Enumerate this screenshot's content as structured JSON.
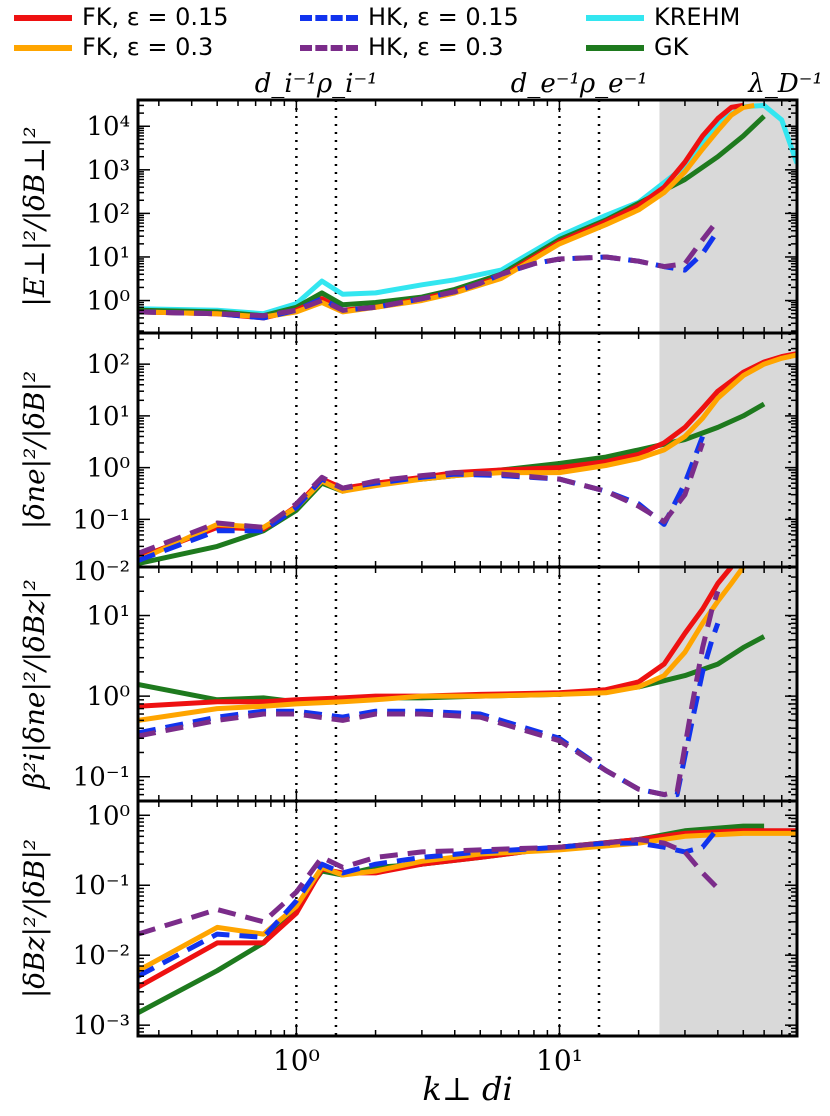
{
  "legend": [
    {
      "key": "fk015",
      "label": "FK, ε = 0.15",
      "color": "#ee1111",
      "dash": false
    },
    {
      "key": "fk03",
      "label": "FK, ε = 0.3",
      "color": "#ffa500",
      "dash": false
    },
    {
      "key": "hk015",
      "label": "HK, ε = 0.15",
      "color": "#1133ee",
      "dash": true
    },
    {
      "key": "hk03",
      "label": "HK, ε = 0.3",
      "color": "#7b2c8a",
      "dash": true
    },
    {
      "key": "krehm",
      "label": "KREHM",
      "color": "#33e6f0",
      "dash": false
    },
    {
      "key": "gk",
      "label": "GK",
      "color": "#1e7a1e",
      "dash": false
    }
  ],
  "scale_markers": [
    {
      "label": "d_i^{-1} ρ_i^{-1}",
      "lines": [
        1.0,
        1.414
      ]
    },
    {
      "label": "d_e^{-1} ρ_e^{-1}",
      "lines": [
        10.0,
        14.14
      ]
    },
    {
      "label": "λ_D^{-1}",
      "lines": [
        75.0
      ]
    }
  ],
  "marker_labels": {
    "ion": "d_i⁻¹ρ_i⁻¹",
    "electron": "d_e⁻¹ρ_e⁻¹",
    "debye": "λ_D⁻¹"
  },
  "xlabel": "k⊥ di",
  "chart_data": [
    {
      "type": "line",
      "id": "p1",
      "ylabel": "|E⊥|²/|δB⊥|²",
      "xlim": [
        0.25,
        80
      ],
      "ylim": [
        0.18,
        40000
      ],
      "yticks": [
        {
          "v": 1,
          "label": "10⁰"
        },
        {
          "v": 10,
          "label": "10¹"
        },
        {
          "v": 100,
          "label": "10²"
        },
        {
          "v": 1000,
          "label": "10³"
        },
        {
          "v": 10000,
          "label": "10⁴"
        }
      ],
      "shaded_from": 24,
      "series": [
        {
          "key": "krehm",
          "x": [
            0.25,
            0.5,
            0.75,
            1.0,
            1.25,
            1.5,
            2,
            3,
            4,
            6,
            10,
            15,
            20,
            30,
            40,
            50,
            60,
            70,
            80
          ],
          "y": [
            0.65,
            0.6,
            0.5,
            0.85,
            2.8,
            1.4,
            1.5,
            2.3,
            3.0,
            5,
            30,
            90,
            180,
            1200,
            12000,
            28000,
            30000,
            14000,
            1400
          ]
        },
        {
          "key": "gk",
          "x": [
            0.25,
            0.5,
            0.75,
            1.0,
            1.25,
            1.5,
            2,
            3,
            4,
            6,
            10,
            15,
            20,
            30,
            40,
            50,
            60
          ],
          "y": [
            0.6,
            0.55,
            0.45,
            0.7,
            1.5,
            0.8,
            0.9,
            1.2,
            1.8,
            4,
            25,
            70,
            170,
            600,
            2000,
            6000,
            17000
          ]
        },
        {
          "key": "fk015",
          "x": [
            0.25,
            0.5,
            0.75,
            1.0,
            1.25,
            1.5,
            2,
            3,
            4,
            6,
            10,
            15,
            20,
            25,
            30,
            35,
            40,
            45,
            50
          ],
          "y": [
            0.55,
            0.5,
            0.4,
            0.6,
            1.1,
            0.6,
            0.7,
            1.1,
            1.6,
            3.5,
            22,
            65,
            150,
            400,
            1500,
            6000,
            15000,
            27000,
            30000
          ]
        },
        {
          "key": "fk03",
          "x": [
            0.25,
            0.5,
            0.75,
            1.0,
            1.25,
            1.5,
            2,
            3,
            4,
            6,
            10,
            15,
            20,
            25,
            30,
            35,
            40,
            45,
            50,
            55
          ],
          "y": [
            0.55,
            0.5,
            0.42,
            0.55,
            0.9,
            0.55,
            0.7,
            1.0,
            1.5,
            3.2,
            20,
            55,
            120,
            300,
            900,
            3000,
            8000,
            18000,
            27000,
            30000
          ]
        },
        {
          "key": "hk015",
          "x": [
            0.25,
            0.5,
            0.75,
            1.0,
            1.25,
            1.5,
            2,
            3,
            4,
            5,
            6,
            8,
            10,
            15,
            20,
            25,
            30,
            35,
            40
          ],
          "y": [
            0.55,
            0.5,
            0.4,
            0.6,
            1.1,
            0.6,
            0.7,
            1.1,
            1.6,
            2.5,
            4,
            7,
            9,
            10,
            8,
            6,
            5,
            12,
            40
          ]
        },
        {
          "key": "hk03",
          "x": [
            0.25,
            0.5,
            0.75,
            1.0,
            1.25,
            1.5,
            2,
            3,
            4,
            5,
            6,
            8,
            10,
            15,
            20,
            25,
            30,
            35,
            40
          ],
          "y": [
            0.55,
            0.5,
            0.45,
            0.6,
            1.0,
            0.6,
            0.7,
            1.1,
            1.6,
            2.5,
            4,
            7,
            9,
            10,
            8,
            6,
            7,
            25,
            70
          ]
        }
      ]
    },
    {
      "type": "line",
      "id": "p2",
      "ylabel": "|δne|²/|δB|²",
      "xlim": [
        0.25,
        80
      ],
      "ylim": [
        0.012,
        400
      ],
      "yticks": [
        {
          "v": 0.01,
          "label": "10⁻²"
        },
        {
          "v": 0.1,
          "label": "10⁻¹"
        },
        {
          "v": 1,
          "label": "10⁰"
        },
        {
          "v": 10,
          "label": "10¹"
        },
        {
          "v": 100,
          "label": "10²"
        }
      ],
      "shaded_from": 24,
      "series": [
        {
          "key": "gk",
          "x": [
            0.25,
            0.5,
            0.75,
            1.0,
            1.25,
            1.5,
            2,
            3,
            4,
            6,
            10,
            15,
            20,
            30,
            40,
            50,
            60
          ],
          "y": [
            0.014,
            0.03,
            0.06,
            0.15,
            0.5,
            0.35,
            0.5,
            0.6,
            0.7,
            0.9,
            1.2,
            1.6,
            2.2,
            3.5,
            6,
            10,
            17
          ]
        },
        {
          "key": "fk015",
          "x": [
            0.25,
            0.5,
            0.75,
            1.0,
            1.25,
            1.5,
            2,
            3,
            4,
            6,
            10,
            15,
            20,
            25,
            30,
            35,
            40,
            50,
            60,
            70,
            80
          ],
          "y": [
            0.018,
            0.07,
            0.065,
            0.18,
            0.6,
            0.4,
            0.5,
            0.65,
            0.8,
            0.9,
            1.0,
            1.3,
            1.8,
            3,
            6,
            14,
            30,
            70,
            110,
            140,
            160
          ]
        },
        {
          "key": "fk03",
          "x": [
            0.25,
            0.5,
            0.75,
            1.0,
            1.25,
            1.5,
            2,
            3,
            4,
            6,
            10,
            15,
            20,
            25,
            30,
            35,
            40,
            50,
            60,
            70,
            80
          ],
          "y": [
            0.016,
            0.08,
            0.07,
            0.17,
            0.55,
            0.35,
            0.45,
            0.6,
            0.7,
            0.8,
            0.8,
            1.1,
            1.5,
            2.2,
            4,
            9,
            22,
            60,
            100,
            130,
            150
          ]
        },
        {
          "key": "hk015",
          "x": [
            0.25,
            0.5,
            0.75,
            1.0,
            1.25,
            1.5,
            2,
            3,
            4,
            6,
            10,
            15,
            20,
            25,
            30,
            35
          ],
          "y": [
            0.016,
            0.06,
            0.06,
            0.17,
            0.6,
            0.4,
            0.5,
            0.65,
            0.75,
            0.7,
            0.6,
            0.35,
            0.2,
            0.08,
            0.5,
            4
          ]
        },
        {
          "key": "hk03",
          "x": [
            0.25,
            0.5,
            0.75,
            1.0,
            1.25,
            1.5,
            2,
            3,
            4,
            6,
            10,
            15,
            20,
            25,
            30,
            35
          ],
          "y": [
            0.022,
            0.085,
            0.07,
            0.2,
            0.65,
            0.4,
            0.55,
            0.7,
            0.8,
            0.75,
            0.6,
            0.35,
            0.18,
            0.09,
            0.3,
            3
          ]
        }
      ]
    },
    {
      "type": "line",
      "id": "p3",
      "ylabel": "β²i|δne|²/|δBz|²",
      "xlim": [
        0.25,
        80
      ],
      "ylim": [
        0.05,
        40
      ],
      "yticks": [
        {
          "v": 0.1,
          "label": "10⁻¹"
        },
        {
          "v": 1,
          "label": "10⁰"
        },
        {
          "v": 10,
          "label": "10¹"
        }
      ],
      "shaded_from": 24,
      "series": [
        {
          "key": "gk",
          "x": [
            0.25,
            0.5,
            0.75,
            1.0,
            1.5,
            2,
            3,
            5,
            10,
            20,
            30,
            40,
            50,
            60
          ],
          "y": [
            1.4,
            0.9,
            0.95,
            0.85,
            0.9,
            0.95,
            0.95,
            1.0,
            1.05,
            1.3,
            1.8,
            2.5,
            4,
            5.5
          ]
        },
        {
          "key": "fk015",
          "x": [
            0.25,
            0.5,
            0.75,
            1.0,
            1.5,
            2,
            3,
            5,
            10,
            15,
            20,
            25,
            30,
            35,
            40,
            45
          ],
          "y": [
            0.75,
            0.85,
            0.85,
            0.9,
            0.95,
            1.0,
            1.0,
            1.05,
            1.1,
            1.2,
            1.5,
            2.5,
            6,
            12,
            25,
            40
          ]
        },
        {
          "key": "fk03",
          "x": [
            0.25,
            0.5,
            0.75,
            1.0,
            1.5,
            2,
            3,
            5,
            10,
            15,
            20,
            25,
            30,
            35,
            40,
            45,
            50
          ],
          "y": [
            0.5,
            0.7,
            0.75,
            0.8,
            0.85,
            0.9,
            1.0,
            1.0,
            1.05,
            1.1,
            1.3,
            1.8,
            3.5,
            8,
            15,
            25,
            40
          ]
        },
        {
          "key": "hk015",
          "x": [
            0.25,
            0.5,
            0.75,
            1.0,
            1.5,
            2,
            3,
            5,
            10,
            15,
            20,
            25,
            28,
            32,
            35,
            38,
            40
          ],
          "y": [
            0.35,
            0.55,
            0.65,
            0.65,
            0.55,
            0.65,
            0.65,
            0.6,
            0.3,
            0.12,
            0.07,
            0.06,
            0.06,
            0.5,
            2,
            5,
            8
          ]
        },
        {
          "key": "hk03",
          "x": [
            0.25,
            0.5,
            0.75,
            1.0,
            1.5,
            2,
            3,
            5,
            10,
            15,
            20,
            25,
            28,
            32,
            35,
            38,
            40
          ],
          "y": [
            0.32,
            0.5,
            0.6,
            0.6,
            0.5,
            0.6,
            0.6,
            0.55,
            0.28,
            0.12,
            0.07,
            0.06,
            0.065,
            0.8,
            4,
            12,
            20
          ]
        }
      ]
    },
    {
      "type": "line",
      "id": "p4",
      "ylabel": "|δBz|²/|δB|²",
      "xlim": [
        0.25,
        80
      ],
      "ylim": [
        0.0007,
        1.6
      ],
      "yticks": [
        {
          "v": 0.001,
          "label": "10⁻³"
        },
        {
          "v": 0.01,
          "label": "10⁻²"
        },
        {
          "v": 0.1,
          "label": "10⁻¹"
        },
        {
          "v": 1,
          "label": "10⁰"
        }
      ],
      "shaded_from": 24,
      "series": [
        {
          "key": "gk",
          "x": [
            0.25,
            0.5,
            0.75,
            1.0,
            1.25,
            1.5,
            2,
            3,
            5,
            10,
            20,
            30,
            50,
            60
          ],
          "y": [
            0.0015,
            0.006,
            0.015,
            0.05,
            0.16,
            0.14,
            0.18,
            0.2,
            0.25,
            0.35,
            0.45,
            0.6,
            0.7,
            0.7
          ]
        },
        {
          "key": "fk015",
          "x": [
            0.25,
            0.5,
            0.75,
            1.0,
            1.25,
            1.5,
            2,
            3,
            5,
            10,
            20,
            30,
            50,
            80
          ],
          "y": [
            0.0035,
            0.015,
            0.015,
            0.04,
            0.17,
            0.15,
            0.15,
            0.2,
            0.25,
            0.35,
            0.45,
            0.55,
            0.6,
            0.6
          ]
        },
        {
          "key": "fk03",
          "x": [
            0.25,
            0.5,
            0.75,
            1.0,
            1.25,
            1.5,
            2,
            3,
            5,
            10,
            20,
            30,
            50,
            80
          ],
          "y": [
            0.006,
            0.025,
            0.02,
            0.05,
            0.18,
            0.14,
            0.16,
            0.22,
            0.28,
            0.32,
            0.4,
            0.5,
            0.55,
            0.55
          ]
        },
        {
          "key": "hk015",
          "x": [
            0.25,
            0.5,
            0.75,
            1.0,
            1.25,
            1.5,
            2,
            3,
            5,
            10,
            15,
            20,
            25,
            30,
            35,
            40
          ],
          "y": [
            0.005,
            0.02,
            0.018,
            0.06,
            0.2,
            0.15,
            0.2,
            0.25,
            0.3,
            0.35,
            0.4,
            0.4,
            0.35,
            0.3,
            0.35,
            0.65
          ]
        },
        {
          "key": "hk03",
          "x": [
            0.25,
            0.5,
            0.75,
            1.0,
            1.25,
            1.5,
            2,
            3,
            5,
            10,
            15,
            20,
            25,
            30,
            35,
            40
          ],
          "y": [
            0.02,
            0.045,
            0.03,
            0.08,
            0.25,
            0.18,
            0.25,
            0.3,
            0.32,
            0.35,
            0.4,
            0.45,
            0.4,
            0.3,
            0.15,
            0.09
          ]
        }
      ]
    }
  ],
  "xticks": [
    {
      "v": 1,
      "label": "10⁰"
    },
    {
      "v": 10,
      "label": "10¹"
    }
  ]
}
